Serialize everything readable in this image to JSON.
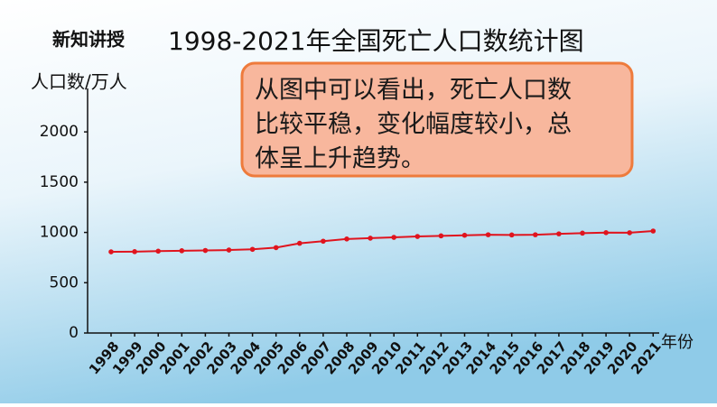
{
  "header": {
    "section": "新知讲授"
  },
  "chart_data": {
    "type": "line",
    "title": "1998-2021年全国死亡人口数统计图",
    "y_label": "人口数/万人",
    "x_label": "年份",
    "categories": [
      "1998",
      "1999",
      "2000",
      "2001",
      "2002",
      "2003",
      "2004",
      "2005",
      "2006",
      "2007",
      "2008",
      "2009",
      "2010",
      "2011",
      "2012",
      "2013",
      "2014",
      "2015",
      "2016",
      "2017",
      "2018",
      "2019",
      "2020",
      "2021"
    ],
    "values": [
      807,
      809,
      814,
      818,
      821,
      825,
      832,
      849,
      892,
      913,
      935,
      943,
      951,
      960,
      966,
      972,
      977,
      975,
      977,
      986,
      993,
      998,
      997,
      1014
    ],
    "color": "#e0141e",
    "ylim": [
      0,
      2450
    ],
    "yticks": [
      0,
      500,
      1000,
      1500,
      2000
    ],
    "grid": false
  },
  "callout": {
    "lines": [
      "从图中可以看出，死亡人口数",
      "比较平稳，变化幅度较小，总",
      "体呈上升趋势。"
    ]
  }
}
